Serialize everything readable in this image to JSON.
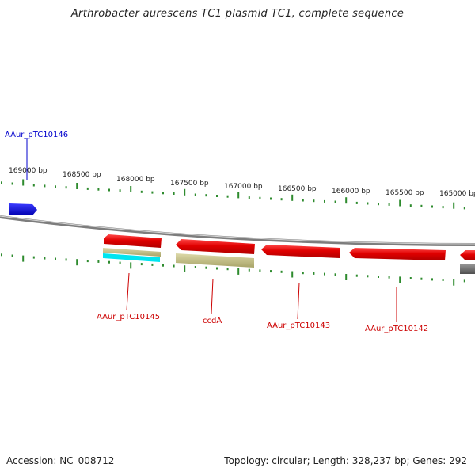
{
  "title": "Arthrobacter aurescens TC1 plasmid TC1, complete sequence",
  "footer": {
    "accession": "Accession: NC_008712",
    "summary": "Topology: circular; Length: 328,237 bp; Genes: 292"
  },
  "ticks": [
    {
      "label": "169000 bp"
    },
    {
      "label": "168500 bp"
    },
    {
      "label": "168000 bp"
    },
    {
      "label": "167500 bp"
    },
    {
      "label": "167000 bp"
    },
    {
      "label": "166500 bp"
    },
    {
      "label": "166000 bp"
    },
    {
      "label": "165500 bp"
    },
    {
      "label": "165000 bp"
    }
  ],
  "gene_labels": [
    {
      "text": "AAur_pTC10146",
      "color": "#0000cc"
    },
    {
      "text": "AAur_pTC10145",
      "color": "#cc0000"
    },
    {
      "text": "ccdA",
      "color": "#cc0000"
    },
    {
      "text": "AAur_pTC10143",
      "color": "#cc0000"
    },
    {
      "text": "AAur_pTC10142",
      "color": "#cc0000"
    }
  ],
  "colors": {
    "backbone": "#8c8c8c",
    "tick": "#2e8b2e",
    "forward_gene": "#0000ee",
    "reverse_gene": "#e00000",
    "feature_khaki": "#c8c48a",
    "feature_cyan": "#00e5f0",
    "feature_gray": "#7a7a7a"
  }
}
